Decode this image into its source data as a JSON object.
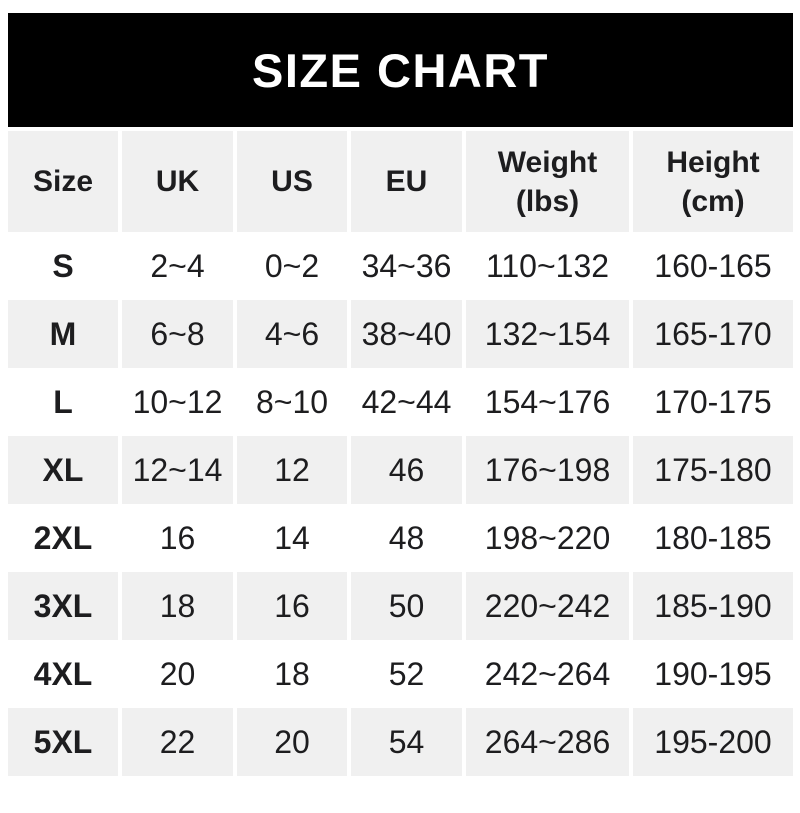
{
  "banner": {
    "title": "SIZE CHART",
    "background": "#000000",
    "text_color": "#ffffff"
  },
  "table": {
    "columns": [
      {
        "label": "Size",
        "unit": ""
      },
      {
        "label": "UK",
        "unit": ""
      },
      {
        "label": "US",
        "unit": ""
      },
      {
        "label": "EU",
        "unit": ""
      },
      {
        "label": "Weight",
        "unit": "(lbs)"
      },
      {
        "label": "Height",
        "unit": "(cm)"
      }
    ],
    "rows": [
      {
        "size": "S",
        "uk": "2~4",
        "us": "0~2",
        "eu": "34~36",
        "weight_lbs": "110~132",
        "height_cm": "160-165"
      },
      {
        "size": "M",
        "uk": "6~8",
        "us": "4~6",
        "eu": "38~40",
        "weight_lbs": "132~154",
        "height_cm": "165-170"
      },
      {
        "size": "L",
        "uk": "10~12",
        "us": "8~10",
        "eu": "42~44",
        "weight_lbs": "154~176",
        "height_cm": "170-175"
      },
      {
        "size": "XL",
        "uk": "12~14",
        "us": "12",
        "eu": "46",
        "weight_lbs": "176~198",
        "height_cm": "175-180"
      },
      {
        "size": "2XL",
        "uk": "16",
        "us": "14",
        "eu": "48",
        "weight_lbs": "198~220",
        "height_cm": "180-185"
      },
      {
        "size": "3XL",
        "uk": "18",
        "us": "16",
        "eu": "50",
        "weight_lbs": "220~242",
        "height_cm": "185-190"
      },
      {
        "size": "4XL",
        "uk": "20",
        "us": "18",
        "eu": "52",
        "weight_lbs": "242~264",
        "height_cm": "190-195"
      },
      {
        "size": "5XL",
        "uk": "22",
        "us": "20",
        "eu": "54",
        "weight_lbs": "264~286",
        "height_cm": "195-200"
      }
    ]
  },
  "colors": {
    "row_alt_background": "#f0f0f0",
    "text": "#1d1d1f",
    "page_background": "#ffffff"
  }
}
